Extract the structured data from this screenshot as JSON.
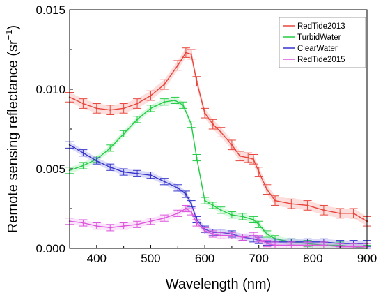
{
  "chart_data": {
    "type": "line",
    "title": "",
    "xlabel": "Wavelength (nm)",
    "ylabel": "Remote sensing reflectance (sr",
    "ylabel_superscript": "−1",
    "ylabel_close": ")",
    "xlim": [
      350,
      900
    ],
    "ylim": [
      0,
      0.015
    ],
    "x_ticks": [
      400,
      500,
      600,
      700,
      800,
      900
    ],
    "x_tick_labels": [
      "400",
      "500",
      "600",
      "700",
      "800",
      "900"
    ],
    "y_ticks": [
      0,
      0.005,
      0.01,
      0.015
    ],
    "y_tick_labels": [
      "0.000",
      "0.005",
      "0.010",
      "0.015"
    ],
    "grid": false,
    "legend_position": "top-right",
    "series": [
      {
        "name": "RedTide2013",
        "color": "#e8453c",
        "errcolor": "#f06a60",
        "points": [
          [
            350,
            0.0095
          ],
          [
            375,
            0.0091
          ],
          [
            400,
            0.0088
          ],
          [
            425,
            0.0087
          ],
          [
            450,
            0.0088
          ],
          [
            475,
            0.0091
          ],
          [
            500,
            0.0096
          ],
          [
            525,
            0.0103
          ],
          [
            550,
            0.0115
          ],
          [
            565,
            0.0123
          ],
          [
            575,
            0.0122
          ],
          [
            585,
            0.0105
          ],
          [
            600,
            0.0085
          ],
          [
            615,
            0.0078
          ],
          [
            630,
            0.0073
          ],
          [
            650,
            0.0065
          ],
          [
            665,
            0.0058
          ],
          [
            680,
            0.0057
          ],
          [
            690,
            0.0056
          ],
          [
            700,
            0.0048
          ],
          [
            715,
            0.0037
          ],
          [
            730,
            0.003
          ],
          [
            760,
            0.0028
          ],
          [
            790,
            0.0027
          ],
          [
            820,
            0.0024
          ],
          [
            850,
            0.0022
          ],
          [
            875,
            0.0022
          ],
          [
            900,
            0.0017
          ]
        ],
        "error": 0.0003
      },
      {
        "name": "TurbidWater",
        "color": "#22cc44",
        "errcolor": "#55e070",
        "points": [
          [
            350,
            0.0049
          ],
          [
            375,
            0.0052
          ],
          [
            400,
            0.0056
          ],
          [
            425,
            0.0063
          ],
          [
            450,
            0.0072
          ],
          [
            475,
            0.0081
          ],
          [
            500,
            0.0088
          ],
          [
            525,
            0.0092
          ],
          [
            545,
            0.0093
          ],
          [
            560,
            0.009
          ],
          [
            575,
            0.0078
          ],
          [
            585,
            0.0057
          ],
          [
            600,
            0.003
          ],
          [
            615,
            0.0027
          ],
          [
            630,
            0.0024
          ],
          [
            650,
            0.0021
          ],
          [
            670,
            0.002
          ],
          [
            690,
            0.0018
          ],
          [
            700,
            0.0015
          ],
          [
            715,
            0.0009
          ],
          [
            730,
            0.0006
          ],
          [
            760,
            0.0004
          ],
          [
            790,
            0.0003
          ],
          [
            820,
            0.0002
          ],
          [
            850,
            0.0002
          ],
          [
            875,
            0.0001
          ],
          [
            900,
            0.0
          ]
        ],
        "error": 0.0002
      },
      {
        "name": "ClearWater",
        "color": "#3333cc",
        "errcolor": "#5555dd",
        "points": [
          [
            350,
            0.0065
          ],
          [
            375,
            0.006
          ],
          [
            400,
            0.0055
          ],
          [
            425,
            0.0051
          ],
          [
            450,
            0.0048
          ],
          [
            475,
            0.0047
          ],
          [
            500,
            0.0046
          ],
          [
            525,
            0.0042
          ],
          [
            550,
            0.0038
          ],
          [
            565,
            0.0034
          ],
          [
            575,
            0.0028
          ],
          [
            585,
            0.0018
          ],
          [
            600,
            0.0012
          ],
          [
            615,
            0.001
          ],
          [
            630,
            0.001
          ],
          [
            650,
            0.0009
          ],
          [
            670,
            0.0007
          ],
          [
            690,
            0.0006
          ],
          [
            700,
            0.0005
          ],
          [
            715,
            0.0004
          ],
          [
            730,
            0.0004
          ],
          [
            760,
            0.0004
          ],
          [
            790,
            0.0004
          ],
          [
            820,
            0.0004
          ],
          [
            850,
            0.0003
          ],
          [
            875,
            0.0003
          ],
          [
            900,
            0.0003
          ]
        ],
        "error": 0.0002
      },
      {
        "name": "RedTide2015",
        "color": "#dd55dd",
        "errcolor": "#ee88ee",
        "points": [
          [
            350,
            0.0017
          ],
          [
            375,
            0.0016
          ],
          [
            400,
            0.0014
          ],
          [
            425,
            0.0013
          ],
          [
            450,
            0.0014
          ],
          [
            475,
            0.0015
          ],
          [
            500,
            0.0017
          ],
          [
            525,
            0.0019
          ],
          [
            550,
            0.0022
          ],
          [
            565,
            0.0025
          ],
          [
            575,
            0.0023
          ],
          [
            585,
            0.0016
          ],
          [
            600,
            0.0011
          ],
          [
            615,
            0.0009
          ],
          [
            630,
            0.0008
          ],
          [
            650,
            0.0008
          ],
          [
            670,
            0.0007
          ],
          [
            690,
            0.0008
          ],
          [
            700,
            0.0006
          ],
          [
            715,
            0.0003
          ],
          [
            730,
            0.0002
          ],
          [
            760,
            0.0002
          ],
          [
            790,
            0.0002
          ],
          [
            820,
            0.0002
          ],
          [
            850,
            0.0001
          ],
          [
            875,
            0.0001
          ],
          [
            900,
            0.0001
          ]
        ],
        "error": 0.0002
      }
    ]
  }
}
